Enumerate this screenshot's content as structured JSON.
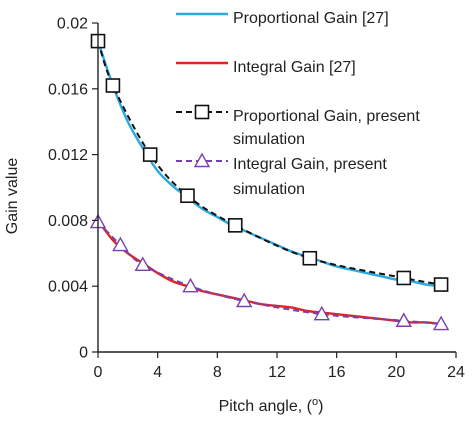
{
  "chart_data": {
    "type": "line",
    "xlabel": "Pitch angle, (",
    "xlabel_sup": "o",
    "xlabel_close": ")",
    "ylabel": "Gain value",
    "xlim": [
      0,
      24
    ],
    "ylim": [
      0,
      0.02
    ],
    "x_ticks": [
      0,
      4,
      8,
      12,
      16,
      20,
      24
    ],
    "x_tick_labels": [
      "0",
      "4",
      "8",
      "12",
      "16",
      "20",
      "24"
    ],
    "y_ticks": [
      0,
      0.004,
      0.008,
      0.012,
      0.016,
      0.02
    ],
    "y_tick_labels": [
      "0",
      "0.004",
      "0.008",
      "0.012",
      "0.016",
      "0.02"
    ],
    "grid": false,
    "legend_position": "top-right",
    "series": [
      {
        "name": "Proportional Gain [27]",
        "legend_lines": [
          "Proportional Gain [27]"
        ],
        "style": "solid",
        "color": "#29a9e0",
        "marker": "none",
        "x": [
          0,
          1,
          2,
          3,
          4,
          5,
          6,
          7,
          8,
          9,
          10,
          11,
          12,
          13,
          14,
          15,
          16,
          17,
          18,
          19,
          20,
          21,
          22,
          23
        ],
        "y": [
          0.0189,
          0.0162,
          0.014,
          0.0124,
          0.011,
          0.0101,
          0.0094,
          0.0087,
          0.0082,
          0.0077,
          0.0073,
          0.0069,
          0.0065,
          0.0061,
          0.0058,
          0.0055,
          0.0052,
          0.005,
          0.0048,
          0.0046,
          0.0044,
          0.0043,
          0.0041,
          0.004
        ]
      },
      {
        "name": "Integral Gain [27]",
        "legend_lines": [
          "Integral Gain [27]"
        ],
        "style": "solid",
        "color": "#e02424",
        "marker": "none",
        "x": [
          0,
          1,
          2,
          3,
          4,
          5,
          6,
          7,
          8,
          9,
          10,
          11,
          12,
          13,
          14,
          15,
          16,
          17,
          18,
          19,
          20,
          21,
          22,
          23
        ],
        "y": [
          0.008,
          0.0068,
          0.006,
          0.0054,
          0.0048,
          0.0043,
          0.004,
          0.0037,
          0.0035,
          0.0033,
          0.0031,
          0.0029,
          0.0028,
          0.0027,
          0.0025,
          0.0024,
          0.0023,
          0.0022,
          0.0021,
          0.002,
          0.0019,
          0.0018,
          0.0018,
          0.0017
        ]
      },
      {
        "name": "Proportional Gain, present simulation",
        "legend_lines": [
          "Proportional Gain, present",
          "simulation"
        ],
        "style": "dashed",
        "color": "#111111",
        "marker": "square",
        "x": [
          0,
          1,
          3.5,
          6,
          9.2,
          14.2,
          20.5,
          23
        ],
        "y": [
          0.0189,
          0.0162,
          0.012,
          0.0095,
          0.0077,
          0.0057,
          0.0045,
          0.0041
        ]
      },
      {
        "name": "Integral Gain, present simulation",
        "legend_lines": [
          "Integral Gain, present",
          "simulation"
        ],
        "style": "dashed",
        "color": "#7a3fb0",
        "marker": "triangle",
        "x": [
          0,
          1.5,
          3,
          6.2,
          9.8,
          15,
          20.5,
          23
        ],
        "y": [
          0.0079,
          0.0065,
          0.0053,
          0.004,
          0.0031,
          0.0023,
          0.0019,
          0.0017
        ]
      }
    ]
  }
}
